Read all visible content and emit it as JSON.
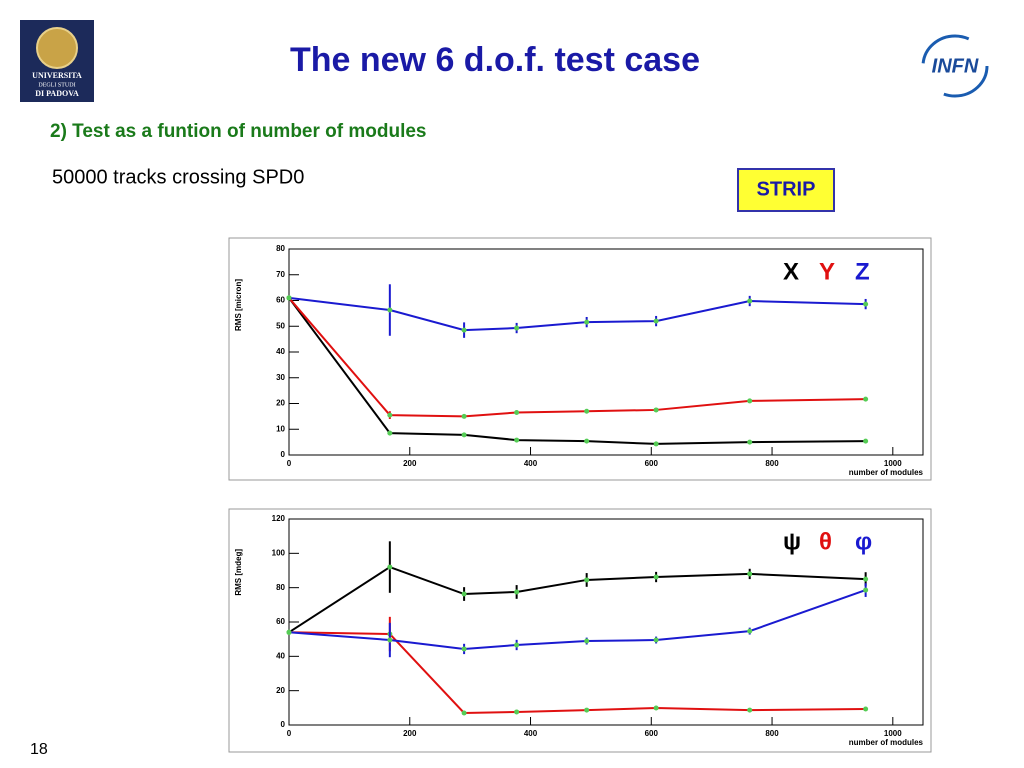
{
  "header": {
    "title": "The new 6 d.o.f. test case",
    "subtitle": "2) Test as a funtion of number of modules",
    "note": "50000 tracks crossing SPD0",
    "badge": "STRIP",
    "left_logo": [
      "UNIVERSITA",
      "DEGLI STUDI",
      "DI PADOVA"
    ],
    "right_logo": "INFN"
  },
  "footer": {
    "page_number": "18"
  },
  "chart_data": [
    {
      "type": "line",
      "ylabel": "RMS [micron]",
      "xlabel": "number of modules",
      "xlim": [
        0,
        1050
      ],
      "ylim": [
        0,
        80
      ],
      "xticks": [
        0,
        200,
        400,
        600,
        800,
        1000
      ],
      "yticks": [
        0,
        10,
        20,
        30,
        40,
        50,
        60,
        70,
        80
      ],
      "x": [
        0,
        167,
        290,
        377,
        493,
        608,
        763,
        955
      ],
      "legend": "top-right",
      "marker_color": "#55cc55",
      "series": [
        {
          "name": "X",
          "color": "#000000",
          "values": [
            61,
            8.5,
            7.8,
            5.8,
            5.4,
            4.3,
            5,
            5.4
          ],
          "errors": [
            0,
            0.5,
            0.5,
            0.5,
            0.5,
            0.5,
            0.5,
            0.5
          ]
        },
        {
          "name": "Y",
          "color": "#e01010",
          "values": [
            61,
            15.5,
            15,
            16.5,
            17,
            17.5,
            21,
            21.7
          ],
          "errors": [
            0,
            1.5,
            0.5,
            0.5,
            0.5,
            0.5,
            0.5,
            0.5
          ]
        },
        {
          "name": "Z",
          "color": "#1a1ad0",
          "values": [
            61,
            56.3,
            48.5,
            49.3,
            51.6,
            52,
            59.8,
            58.6
          ],
          "errors": [
            0,
            10,
            3,
            2,
            2,
            2,
            2,
            2
          ]
        }
      ]
    },
    {
      "type": "line",
      "ylabel": "RMS [mdeg]",
      "xlabel": "number of modules",
      "xlim": [
        0,
        1050
      ],
      "ylim": [
        0,
        120
      ],
      "xticks": [
        0,
        200,
        400,
        600,
        800,
        1000
      ],
      "yticks": [
        0,
        20,
        40,
        60,
        80,
        100,
        120
      ],
      "x": [
        0,
        167,
        290,
        377,
        493,
        608,
        763,
        955
      ],
      "legend": "top-right",
      "marker_color": "#55cc55",
      "series": [
        {
          "name": "ψ",
          "color": "#000000",
          "values": [
            54,
            92,
            76.3,
            77.5,
            84.5,
            86.2,
            88,
            85
          ],
          "errors": [
            0,
            15,
            4,
            4,
            4,
            3,
            3,
            4
          ]
        },
        {
          "name": "θ",
          "color": "#e01010",
          "values": [
            54,
            53,
            7,
            7.6,
            8.7,
            9.9,
            8.7,
            9.3
          ],
          "errors": [
            0,
            10,
            0.5,
            0.5,
            0.5,
            0.5,
            0.5,
            0.5
          ]
        },
        {
          "name": "φ",
          "color": "#1a1ad0",
          "values": [
            54,
            49.5,
            44.3,
            46.6,
            48.9,
            49.5,
            54.7,
            78.6
          ],
          "errors": [
            0,
            10,
            3,
            3,
            2,
            2,
            2,
            4
          ]
        }
      ]
    }
  ]
}
